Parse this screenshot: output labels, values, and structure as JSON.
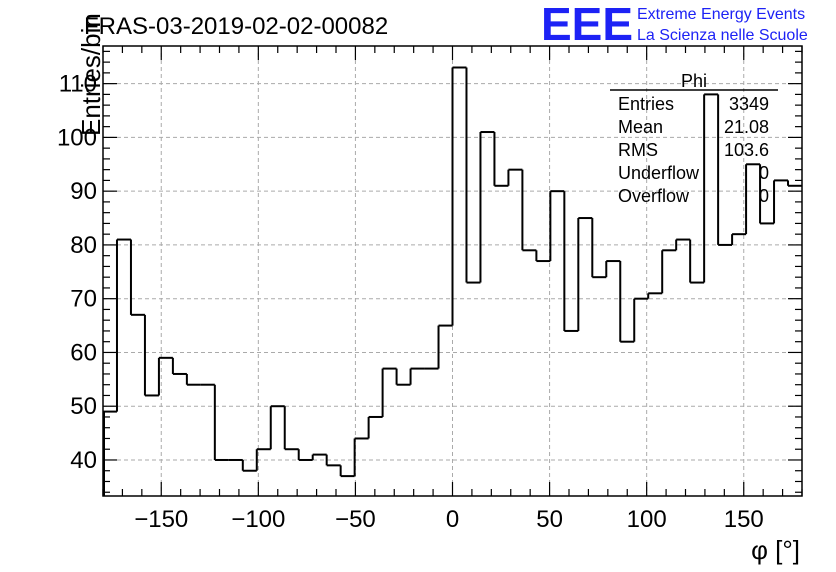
{
  "title": "FRAS-03-2019-02-02-00082",
  "logo": {
    "mark": "EEE",
    "line1": "Extreme Energy Events",
    "line2": "La Scienza nelle Scuole",
    "color": "#1d22f5"
  },
  "stats": {
    "name": "Phi",
    "rows": [
      {
        "label": "Entries",
        "value": "3349"
      },
      {
        "label": "Mean",
        "value": "21.08"
      },
      {
        "label": "RMS",
        "value": "103.6"
      },
      {
        "label": "Underflow",
        "value": "0"
      },
      {
        "label": "Overflow",
        "value": "0"
      }
    ]
  },
  "chart_data": {
    "type": "histogram",
    "title": "FRAS-03-2019-02-02-00082",
    "xlabel": "φ [°]",
    "ylabel": "Entries/bin",
    "xlim": [
      -180,
      180
    ],
    "ylim": [
      33.3,
      117
    ],
    "bin_width": 7.2,
    "grid": true,
    "xticks": [
      -150,
      -100,
      -50,
      0,
      50,
      100,
      150
    ],
    "xtick_labels": [
      "−150",
      "−100",
      "−50",
      "0",
      "50",
      "100",
      "150"
    ],
    "yticks": [
      40,
      50,
      60,
      70,
      80,
      90,
      100,
      110
    ],
    "yticks_labels": [
      "40",
      "50",
      "60",
      "70",
      "80",
      "90",
      "100",
      "110"
    ],
    "bin_low_edges": [
      -180,
      -172.8,
      -165.6,
      -158.4,
      -151.2,
      -144,
      -136.8,
      -129.6,
      -122.4,
      -115.2,
      -108,
      -100.8,
      -93.6,
      -86.4,
      -79.2,
      -72,
      -64.8,
      -57.6,
      -50.4,
      -43.2,
      -36,
      -28.8,
      -21.6,
      -14.4,
      -7.2,
      0,
      7.2,
      14.4,
      21.6,
      28.8,
      36,
      43.2,
      50.4,
      57.6,
      64.8,
      72,
      79.2,
      86.4,
      93.6,
      100.8,
      108,
      115.2,
      122.4,
      129.6,
      136.8,
      144,
      151.2,
      158.4,
      165.6,
      172.8
    ],
    "values": [
      49,
      81,
      67,
      52,
      59,
      56,
      54,
      54,
      40,
      40,
      38,
      42,
      50,
      42,
      40,
      41,
      39,
      37,
      44,
      48,
      57,
      54,
      57,
      57,
      65,
      113,
      73,
      101,
      91,
      94,
      79,
      77,
      90,
      64,
      85,
      74,
      77,
      62,
      70,
      71,
      79,
      81,
      73,
      108,
      80,
      82,
      95,
      84,
      92,
      91
    ]
  }
}
